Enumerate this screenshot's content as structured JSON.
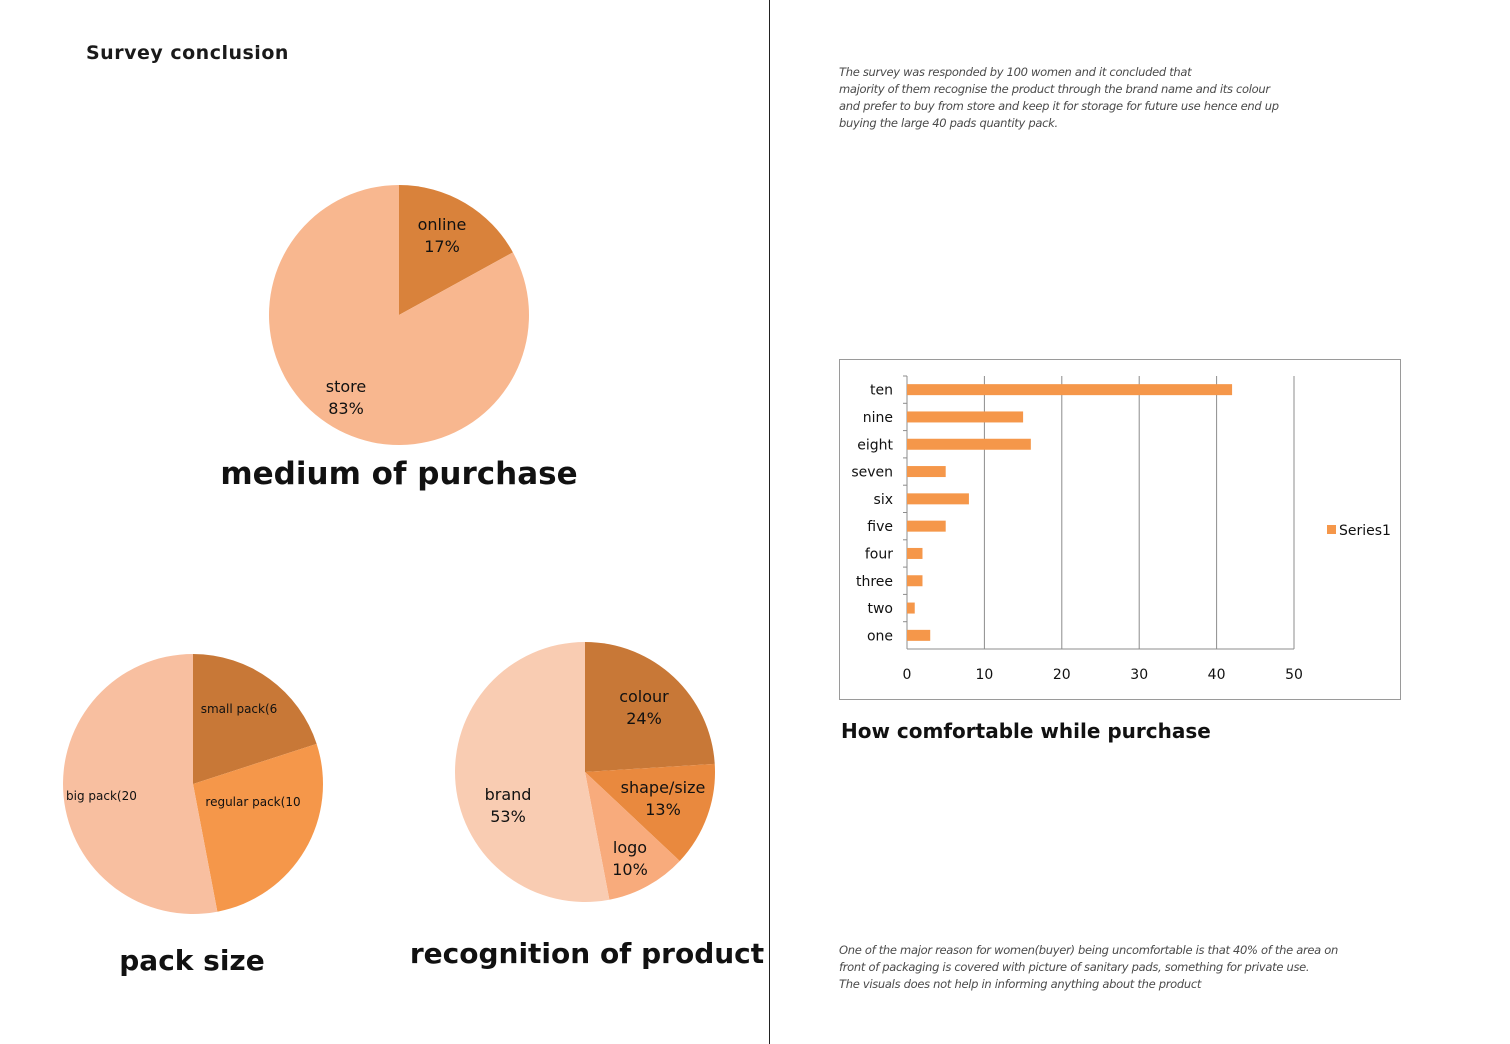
{
  "page_title": "Survey conclusion",
  "notes": {
    "top": [
      "The survey was responded by 100 women and it concluded that",
      "majority of them recognise the product through the brand name and its colour",
      "and prefer to buy from store and keep it for storage for future use hence end up",
      "buying the large 40 pads quantity pack."
    ],
    "bottom": [
      "One of the major reason for women(buyer) being uncomfortable is that 40% of the area on",
      "front of packaging is covered with picture of sanitary pads, something for private use.",
      "The visuals does not help in informing anything about the product"
    ]
  },
  "chart_data": [
    {
      "type": "pie",
      "title": "medium of purchase",
      "slices": [
        {
          "label": "online",
          "pct_label": "17%",
          "value": 17,
          "color": "#d9823b"
        },
        {
          "label": "store",
          "pct_label": "83%",
          "value": 83,
          "color": "#f8b78f"
        }
      ]
    },
    {
      "type": "pie",
      "title": "pack size",
      "slices": [
        {
          "label": "small pack(6",
          "value": 20,
          "color": "#c87837"
        },
        {
          "label": "regular pack(10",
          "value": 27,
          "color": "#f5974a"
        },
        {
          "label": "big pack(20",
          "value": 53,
          "color": "#f8bfa0"
        }
      ]
    },
    {
      "type": "pie",
      "title": "recognition of product",
      "slices": [
        {
          "label": "colour",
          "pct_label": "24%",
          "value": 24,
          "color": "#c87837"
        },
        {
          "label": "shape/size",
          "pct_label": "13%",
          "value": 13,
          "color": "#e9893e"
        },
        {
          "label": "logo",
          "pct_label": "10%",
          "value": 10,
          "color": "#f8ab7c"
        },
        {
          "label": "brand",
          "pct_label": "53%",
          "value": 53,
          "color": "#f9ccb2"
        }
      ]
    },
    {
      "type": "bar",
      "orientation": "horizontal",
      "title": "How comfortable while purchase",
      "categories": [
        "ten",
        "nine",
        "eight",
        "seven",
        "six",
        "five",
        "four",
        "three",
        "two",
        "one"
      ],
      "series": [
        {
          "name": "Series1",
          "color": "#f5974a",
          "values": [
            42,
            15,
            16,
            5,
            8,
            5,
            2,
            2,
            1,
            3
          ]
        }
      ],
      "xlim": [
        0,
        50
      ],
      "xticks": [
        0,
        10,
        20,
        30,
        40,
        50
      ],
      "grid": true,
      "legend": "right"
    }
  ]
}
